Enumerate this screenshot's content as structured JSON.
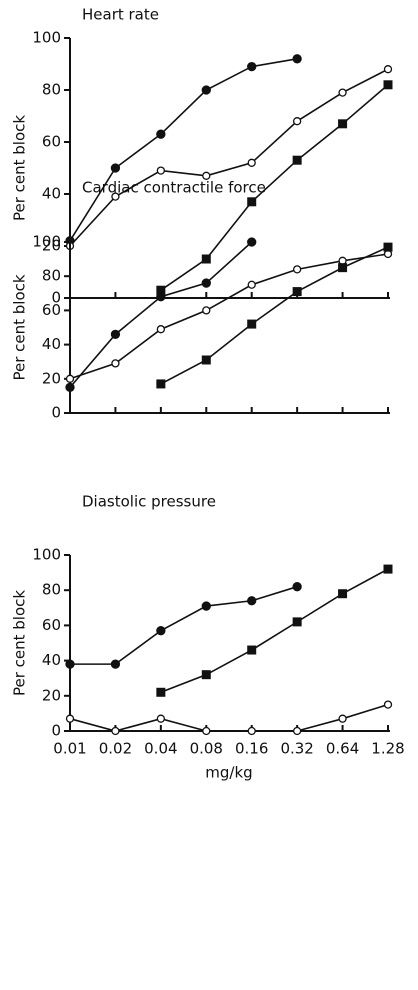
{
  "chart_data": [
    {
      "type": "line",
      "title": "Heart rate",
      "ylabel": "Per cent block",
      "ylim": [
        0,
        100
      ],
      "yticks": [
        0,
        20,
        40,
        60,
        80,
        100
      ],
      "series": [
        {
          "color": "#111111",
          "marker": "filled-circle",
          "values": [
            22,
            50,
            63,
            80,
            89,
            92,
            null,
            null
          ]
        },
        {
          "color": "#111111",
          "marker": "open-circle",
          "values": [
            20,
            39,
            49,
            47,
            52,
            68,
            79,
            88
          ]
        },
        {
          "color": "#111111",
          "marker": "filled-square",
          "values": [
            null,
            null,
            3,
            15,
            37,
            53,
            67,
            82
          ]
        }
      ]
    },
    {
      "type": "line",
      "title": "Cardiac contractile force",
      "ylabel": "Per cent block",
      "ylim": [
        0,
        100
      ],
      "yticks": [
        0,
        20,
        40,
        60,
        80,
        100
      ],
      "series": [
        {
          "color": "#111111",
          "marker": "filled-circle",
          "values": [
            15,
            46,
            68,
            76,
            100,
            null,
            null,
            null
          ]
        },
        {
          "color": "#111111",
          "marker": "open-circle",
          "values": [
            20,
            29,
            49,
            60,
            75,
            84,
            89,
            93
          ]
        },
        {
          "color": "#111111",
          "marker": "filled-square",
          "values": [
            null,
            null,
            17,
            31,
            52,
            71,
            85,
            97
          ]
        }
      ]
    },
    {
      "type": "line",
      "title": "Diastolic pressure",
      "ylabel": "Per cent block",
      "xlabel": "mg/kg",
      "categories": [
        "0.01",
        "0.02",
        "0.04",
        "0.08",
        "0.16",
        "0.32",
        "0.64",
        "1.28"
      ],
      "ylim": [
        0,
        100
      ],
      "yticks": [
        0,
        20,
        40,
        60,
        80,
        100
      ],
      "series": [
        {
          "color": "#111111",
          "marker": "filled-circle",
          "values": [
            38,
            38,
            57,
            71,
            74,
            82,
            null,
            null
          ]
        },
        {
          "color": "#111111",
          "marker": "filled-square",
          "values": [
            null,
            null,
            22,
            32,
            46,
            62,
            78,
            92
          ]
        },
        {
          "color": "#111111",
          "marker": "open-circle",
          "values": [
            7,
            0,
            7,
            0,
            0,
            0,
            7,
            15
          ]
        }
      ]
    }
  ]
}
